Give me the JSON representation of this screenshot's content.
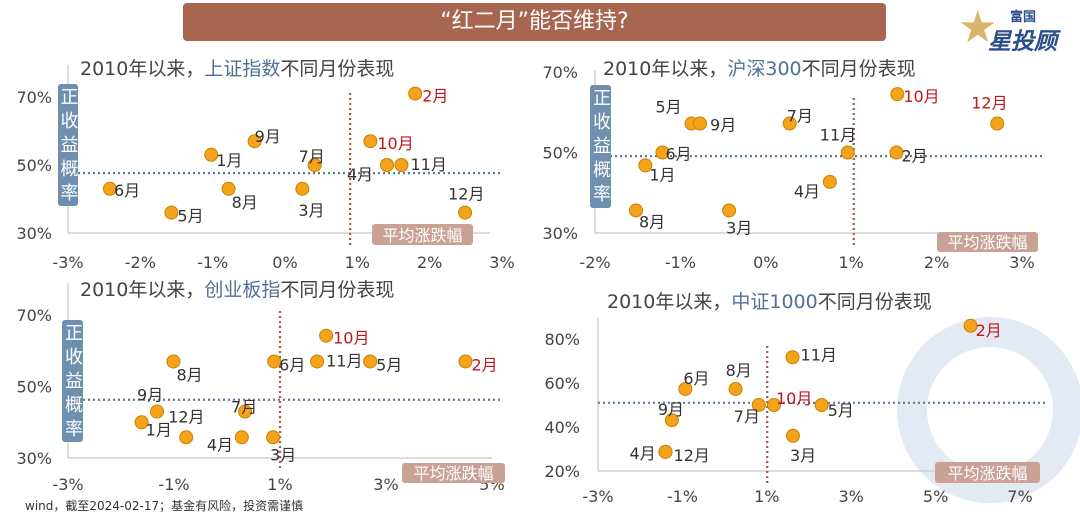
{
  "header": {
    "title": "“红二月”能否维持?"
  },
  "logo": {
    "line1": "富国",
    "line2": "星投顾"
  },
  "footer": "wind，截至2024-02-17；基金有风险，投资需谨慎",
  "colors": {
    "banner": "#a86550",
    "point": "#f5a31a",
    "point_stroke": "#c98000",
    "highlight_label": "#c0151b",
    "index_name": "#4f7196",
    "y_label_box": "#6f8fb0",
    "x_label_box": "#c9a295",
    "avg_h_line": "#5d7a99",
    "avg_v_line": "#9a5a4a"
  },
  "chart_data": [
    {
      "type": "scatter",
      "title_prefix": "2010年以来，",
      "title_index": "上证指数",
      "title_suffix": "不同月份表现",
      "ylabel": "正收益概率",
      "xlabel": "平均涨跌幅",
      "xlim": [
        -3,
        3
      ],
      "ylim": [
        30,
        70
      ],
      "xticks": [
        "-3%",
        "-2%",
        "-1%",
        "0%",
        "1%",
        "2%",
        "3%"
      ],
      "xtick_values": [
        -3,
        -2,
        -1,
        0,
        1,
        2,
        3
      ],
      "yticks": [
        "30%",
        "50%",
        "70%"
      ],
      "ytick_values": [
        30,
        50,
        70
      ],
      "avg_x": 0.9,
      "avg_y": 47.6,
      "highlight": [
        "2月",
        "10月"
      ],
      "points": [
        {
          "label": "1月",
          "x": -1.02,
          "y": 53
        },
        {
          "label": "2月",
          "x": 1.8,
          "y": 71
        },
        {
          "label": "3月",
          "x": 0.24,
          "y": 43
        },
        {
          "label": "4月",
          "x": 1.41,
          "y": 50
        },
        {
          "label": "5月",
          "x": -1.57,
          "y": 36
        },
        {
          "label": "6月",
          "x": -2.42,
          "y": 43
        },
        {
          "label": "7月",
          "x": 0.41,
          "y": 50
        },
        {
          "label": "8月",
          "x": -0.78,
          "y": 43
        },
        {
          "label": "9月",
          "x": -0.42,
          "y": 57
        },
        {
          "label": "10月",
          "x": 1.18,
          "y": 57
        },
        {
          "label": "11月",
          "x": 1.61,
          "y": 50
        },
        {
          "label": "12月",
          "x": 2.49,
          "y": 36
        }
      ]
    },
    {
      "type": "scatter",
      "title_prefix": "2010年以来，",
      "title_index": "沪深300",
      "title_suffix": "不同月份表现",
      "ylabel": "正收益概率",
      "xlabel": "平均涨跌幅",
      "xlim": [
        -2,
        3
      ],
      "ylim": [
        30,
        70
      ],
      "xticks": [
        "-2%",
        "-1%",
        "0%",
        "1%",
        "2%",
        "3%"
      ],
      "xtick_values": [
        -2,
        -1,
        0,
        1,
        2,
        3
      ],
      "yticks": [
        "30%",
        "50%",
        "70%"
      ],
      "ytick_values": [
        30,
        50,
        70
      ],
      "avg_x": 1.03,
      "avg_y": 49.1,
      "highlight": [
        "10月",
        "12月"
      ],
      "points": [
        {
          "label": "1月",
          "x": -1.41,
          "y": 46.8
        },
        {
          "label": "2月",
          "x": 1.53,
          "y": 50
        },
        {
          "label": "3月",
          "x": -0.43,
          "y": 35.6
        },
        {
          "label": "4月",
          "x": 0.75,
          "y": 42.7
        },
        {
          "label": "5月",
          "x": -0.87,
          "y": 57.2
        },
        {
          "label": "6月",
          "x": -1.21,
          "y": 50
        },
        {
          "label": "7月",
          "x": 0.28,
          "y": 57.2
        },
        {
          "label": "8月",
          "x": -1.52,
          "y": 35.6
        },
        {
          "label": "9月",
          "x": -0.77,
          "y": 57.2
        },
        {
          "label": "10月",
          "x": 1.54,
          "y": 64.5
        },
        {
          "label": "11月",
          "x": 0.96,
          "y": 50
        },
        {
          "label": "12月",
          "x": 2.71,
          "y": 57.2
        }
      ]
    },
    {
      "type": "scatter",
      "title_prefix": "2010年以来，",
      "title_index": "创业板指",
      "title_suffix": "不同月份表现",
      "ylabel": "正收益概率",
      "xlabel": "平均涨跌幅",
      "xlim": [
        -3,
        5
      ],
      "ylim": [
        30,
        70
      ],
      "xticks": [
        "-3%",
        "-1%",
        "1%",
        "3%",
        "5%"
      ],
      "xtick_values": [
        -3,
        -1,
        1,
        3,
        5
      ],
      "yticks": [
        "30%",
        "50%",
        "70%"
      ],
      "ytick_values": [
        30,
        50,
        70
      ],
      "avg_x": 1.0,
      "avg_y": 46.3,
      "highlight": [
        "10月",
        "2月"
      ],
      "points": [
        {
          "label": "1月",
          "x": -1.61,
          "y": 40
        },
        {
          "label": "2月",
          "x": 4.5,
          "y": 57
        },
        {
          "label": "3月",
          "x": 0.87,
          "y": 35.8
        },
        {
          "label": "4月",
          "x": 0.28,
          "y": 35.8
        },
        {
          "label": "5月",
          "x": 2.7,
          "y": 57
        },
        {
          "label": "6月",
          "x": 0.89,
          "y": 57
        },
        {
          "label": "7月",
          "x": 0.34,
          "y": 43
        },
        {
          "label": "8月",
          "x": -1.01,
          "y": 57
        },
        {
          "label": "9月",
          "x": -1.32,
          "y": 43
        },
        {
          "label": "10月",
          "x": 1.87,
          "y": 64.2
        },
        {
          "label": "11月",
          "x": 1.7,
          "y": 57
        },
        {
          "label": "12月",
          "x": -0.77,
          "y": 35.8
        }
      ]
    },
    {
      "type": "scatter",
      "title_prefix": "2010年以来，",
      "title_index": "中证1000",
      "title_suffix": "不同月份表现",
      "xlabel": "平均涨跌幅",
      "xlim": [
        -3,
        7
      ],
      "ylim": [
        20,
        80
      ],
      "xticks": [
        "-3%",
        "-1%",
        "1%",
        "3%",
        "5%",
        "7%"
      ],
      "xtick_values": [
        -3,
        -1,
        1,
        3,
        5,
        7
      ],
      "yticks": [
        "20%",
        "40%",
        "60%",
        "80%"
      ],
      "ytick_values": [
        20,
        40,
        60,
        80
      ],
      "avg_x": 1.01,
      "avg_y": 51,
      "highlight": [
        "2月",
        "10月"
      ],
      "points": [
        {
          "label": "2月",
          "x": 5.83,
          "y": 86
        },
        {
          "label": "3月",
          "x": 1.62,
          "y": 36
        },
        {
          "label": "4月",
          "x": -1.4,
          "y": 28.7
        },
        {
          "label": "5月",
          "x": 2.3,
          "y": 50
        },
        {
          "label": "6月",
          "x": -0.93,
          "y": 57.3
        },
        {
          "label": "7月",
          "x": 0.81,
          "y": 50
        },
        {
          "label": "8月",
          "x": 0.26,
          "y": 57.3
        },
        {
          "label": "9月",
          "x": -1.25,
          "y": 43.1
        },
        {
          "label": "10月",
          "x": 1.17,
          "y": 50
        },
        {
          "label": "11月",
          "x": 1.61,
          "y": 71.7
        },
        {
          "label": "12月",
          "x": -1.4,
          "y": 28.7
        }
      ]
    }
  ]
}
